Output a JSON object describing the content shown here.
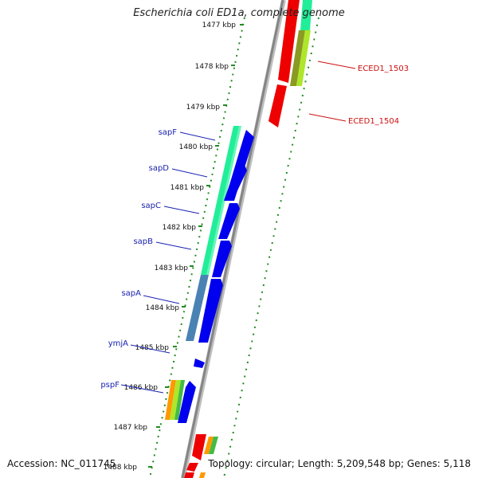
{
  "title": "Escherichia coli ED1a, complete genome",
  "footer": {
    "accession": "Accession: NC_011745",
    "topology": "Topology: circular; Length: 5,209,548 bp; Genes: 5,118"
  },
  "ticks": [
    {
      "label": "1477 kbp"
    },
    {
      "label": "1478 kbp"
    },
    {
      "label": "1479 kbp"
    },
    {
      "label": "1480 kbp"
    },
    {
      "label": "1481 kbp"
    },
    {
      "label": "1482 kbp"
    },
    {
      "label": "1483 kbp"
    },
    {
      "label": "1484 kbp"
    },
    {
      "label": "1485 kbp"
    },
    {
      "label": "1486 kbp"
    },
    {
      "label": "1487 kbp"
    },
    {
      "label": "1488 kbp"
    }
  ],
  "left_genes": [
    "sapF",
    "sapD",
    "sapC",
    "sapB",
    "sapA",
    "ymjA",
    "pspF"
  ],
  "right_genes": [
    "ECED1_1503",
    "ECED1_1504"
  ],
  "colors": {
    "forward_cds": "#0000ee",
    "reverse_cds": "#ee0000",
    "teal_cogs": "#22ee99",
    "steel_cogs": "#4a82b4",
    "lime_cogs": "#aee62a",
    "olive_cogs": "#8a9a22",
    "orange_cogs": "#ff9900",
    "green_cogs": "#44bb44",
    "backbone": "#8a8a8a",
    "gc_ticks": "#228b22"
  }
}
